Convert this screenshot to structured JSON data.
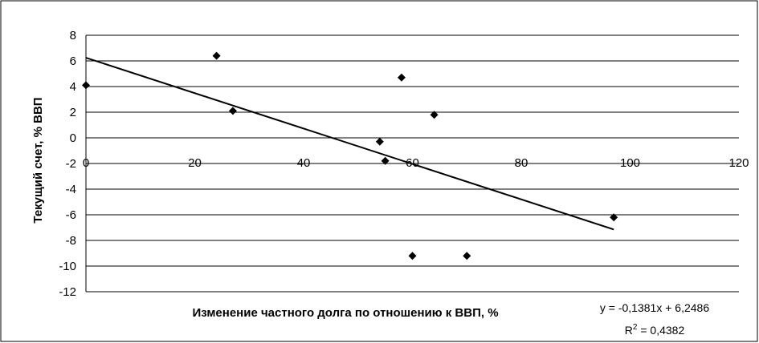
{
  "chart_data": {
    "type": "scatter",
    "xlabel": "Изменение частного долга по отношению к ВВП, %",
    "ylabel": "Текущий счет, % ВВП",
    "xlim": [
      0,
      120
    ],
    "ylim": [
      -12,
      8
    ],
    "x_ticks": [
      "0",
      "20",
      "40",
      "60",
      "80",
      "100",
      "120"
    ],
    "y_ticks": [
      "8",
      "6",
      "4",
      "2",
      "0",
      "-2",
      "-4",
      "-6",
      "-8",
      "-10",
      "-12"
    ],
    "grid": "horizontal",
    "legend": "none",
    "points": [
      {
        "x": 0,
        "y": 4.1
      },
      {
        "x": 24,
        "y": 6.4
      },
      {
        "x": 27,
        "y": 2.1
      },
      {
        "x": 54,
        "y": -0.3
      },
      {
        "x": 55,
        "y": -1.8
      },
      {
        "x": 58,
        "y": 4.7
      },
      {
        "x": 60,
        "y": -9.2
      },
      {
        "x": 64,
        "y": 1.8
      },
      {
        "x": 70,
        "y": -9.2
      },
      {
        "x": 97,
        "y": -6.2
      }
    ],
    "trendline": {
      "x_start": 0,
      "x_end": 97,
      "slope": -0.1381,
      "intercept": 6.2486,
      "equation": "y = -0,1381x + 6,2486",
      "r2_label": "R",
      "r2_sup": "2",
      "r2_value": " = 0,4382"
    },
    "colors": {
      "marker": "#000000",
      "line": "#000000",
      "grid": "#000000"
    }
  }
}
